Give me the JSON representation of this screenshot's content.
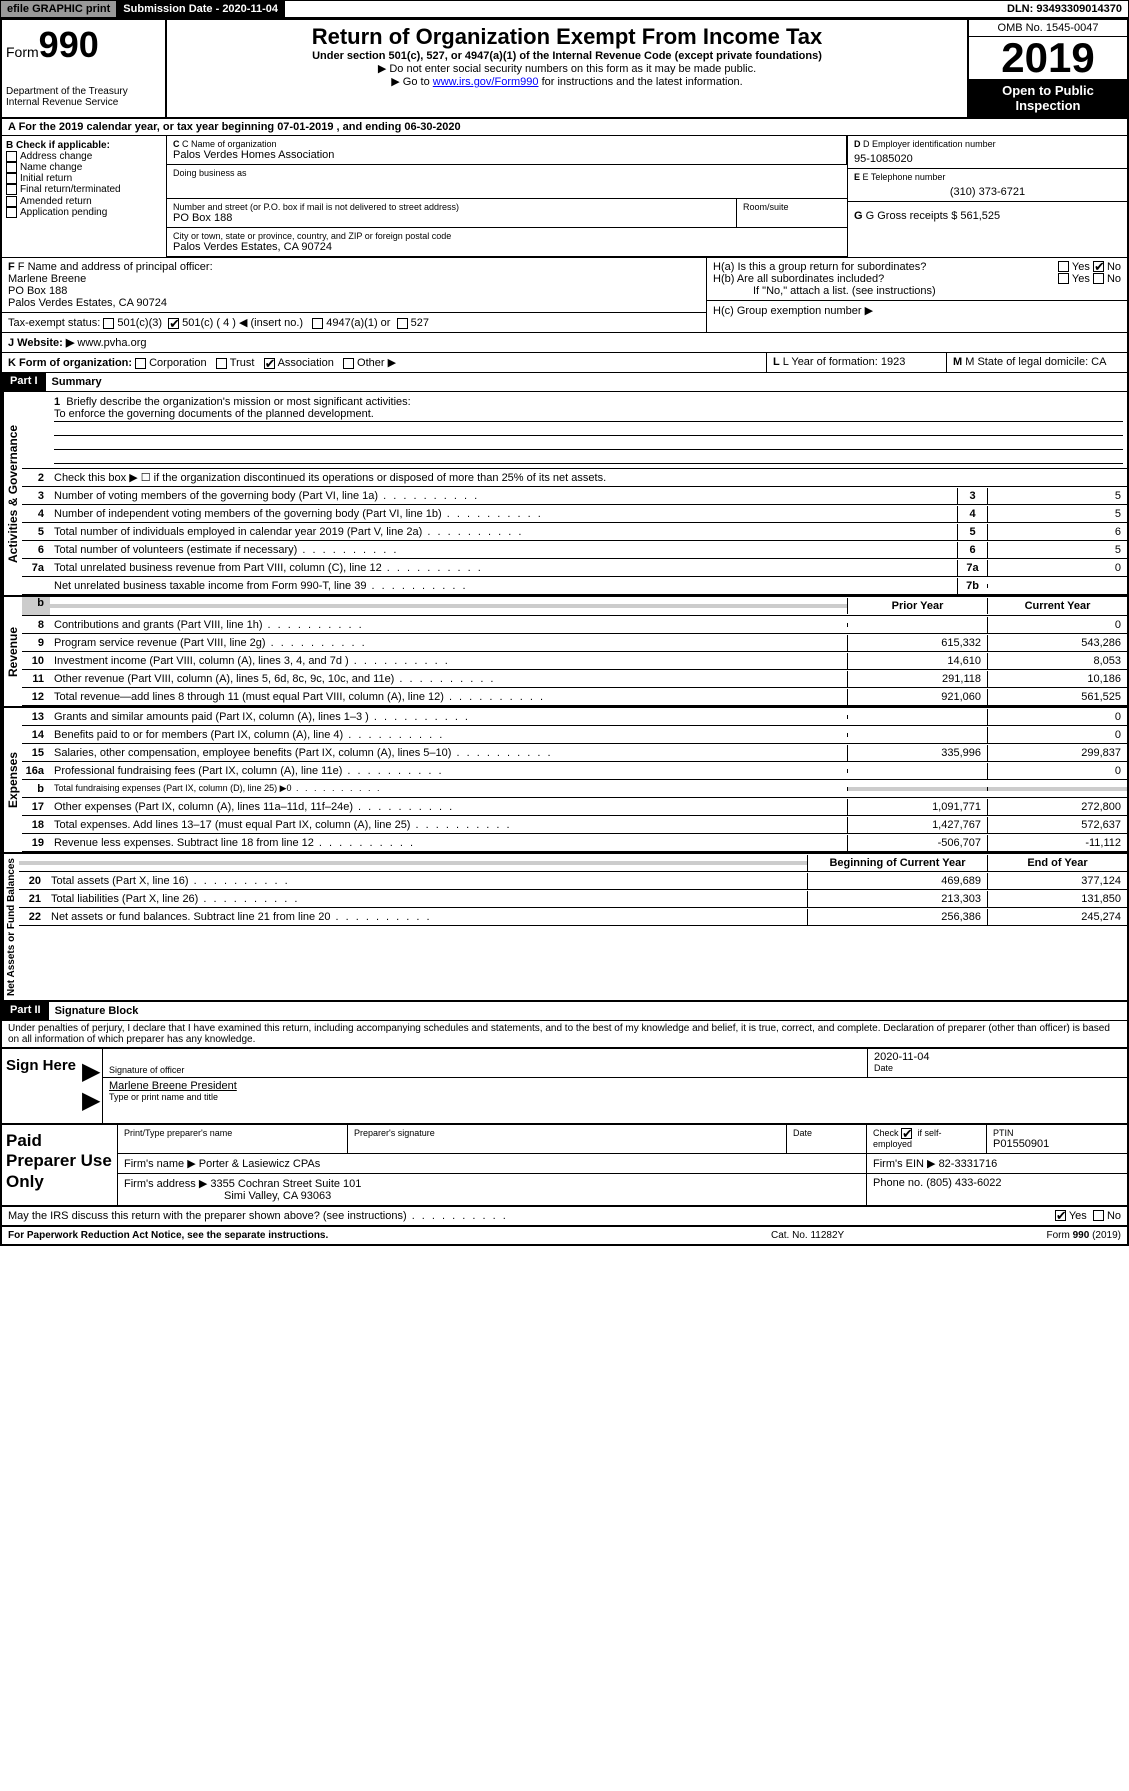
{
  "topbar": {
    "efile": "efile GRAPHIC print",
    "submission_label": "Submission Date - 2020-11-04",
    "dln": "DLN: 93493309014370"
  },
  "header": {
    "form_prefix": "Form",
    "form_num": "990",
    "dept1": "Department of the Treasury",
    "dept2": "Internal Revenue Service",
    "title": "Return of Organization Exempt From Income Tax",
    "subtitle": "Under section 501(c), 527, or 4947(a)(1) of the Internal Revenue Code (except private foundations)",
    "note1": "▶ Do not enter social security numbers on this form as it may be made public.",
    "note2_pre": "▶ Go to ",
    "note2_link": "www.irs.gov/Form990",
    "note2_post": " for instructions and the latest information.",
    "omb": "OMB No. 1545-0047",
    "year": "2019",
    "open": "Open to Public Inspection"
  },
  "row_a": "A For the 2019 calendar year, or tax year beginning 07-01-2019    , and ending 06-30-2020",
  "col_b": {
    "title": "B Check if applicable:",
    "items": [
      "Address change",
      "Name change",
      "Initial return",
      "Final return/terminated",
      "Amended return",
      "Application pending"
    ]
  },
  "c": {
    "label": "C Name of organization",
    "name": "Palos Verdes Homes Association",
    "dba_label": "Doing business as",
    "addr_label": "Number and street (or P.O. box if mail is not delivered to street address)",
    "room_label": "Room/suite",
    "addr": "PO Box 188",
    "city_label": "City or town, state or province, country, and ZIP or foreign postal code",
    "city": "Palos Verdes Estates, CA  90724"
  },
  "d": {
    "label": "D Employer identification number",
    "value": "95-1085020"
  },
  "e": {
    "label": "E Telephone number",
    "value": "(310) 373-6721"
  },
  "g": {
    "label": "G Gross receipts $ 561,525"
  },
  "f": {
    "label": "F  Name and address of principal officer:",
    "name": "Marlene Breene",
    "addr1": "PO Box 188",
    "addr2": "Palos Verdes Estates, CA  90724"
  },
  "h": {
    "a": "H(a)  Is this a group return for subordinates?",
    "b": "H(b)  Are all subordinates included?",
    "b_note": "If \"No,\" attach a list. (see instructions)",
    "c": "H(c)  Group exemption number ▶",
    "yes": "Yes",
    "no": "No"
  },
  "i": {
    "label": "Tax-exempt status:",
    "opt1": "501(c)(3)",
    "opt2": "501(c) ( 4 ) ◀ (insert no.)",
    "opt3": "4947(a)(1) or",
    "opt4": "527"
  },
  "j": {
    "label": "J   Website: ▶",
    "value": "  www.pvha.org"
  },
  "k": {
    "label": "K Form of organization:",
    "opts": [
      "Corporation",
      "Trust",
      "Association",
      "Other ▶"
    ]
  },
  "l": {
    "label": "L Year of formation: 1923"
  },
  "m": {
    "label": "M State of legal domicile: CA"
  },
  "part1": {
    "header": "Part I",
    "title": "Summary",
    "side1": "Activities & Governance",
    "side2": "Revenue",
    "side3": "Expenses",
    "side4": "Net Assets or Fund Balances",
    "l1": "Briefly describe the organization's mission or most significant activities:",
    "l1_text": "To enforce the governing documents of the planned development.",
    "l2": "Check this box ▶ ☐  if the organization discontinued its operations or disposed of more than 25% of its net assets.",
    "lines_gov": [
      {
        "n": "3",
        "t": "Number of voting members of the governing body (Part VI, line 1a)",
        "b": "3",
        "v": "5"
      },
      {
        "n": "4",
        "t": "Number of independent voting members of the governing body (Part VI, line 1b)",
        "b": "4",
        "v": "5"
      },
      {
        "n": "5",
        "t": "Total number of individuals employed in calendar year 2019 (Part V, line 2a)",
        "b": "5",
        "v": "6"
      },
      {
        "n": "6",
        "t": "Total number of volunteers (estimate if necessary)",
        "b": "6",
        "v": "5"
      },
      {
        "n": "7a",
        "t": "Total unrelated business revenue from Part VIII, column (C), line 12",
        "b": "7a",
        "v": "0"
      },
      {
        "n": "",
        "t": "Net unrelated business taxable income from Form 990-T, line 39",
        "b": "7b",
        "v": ""
      }
    ],
    "col_prior": "Prior Year",
    "col_current": "Current Year",
    "lines_rev": [
      {
        "n": "8",
        "t": "Contributions and grants (Part VIII, line 1h)",
        "p": "",
        "c": "0"
      },
      {
        "n": "9",
        "t": "Program service revenue (Part VIII, line 2g)",
        "p": "615,332",
        "c": "543,286"
      },
      {
        "n": "10",
        "t": "Investment income (Part VIII, column (A), lines 3, 4, and 7d )",
        "p": "14,610",
        "c": "8,053"
      },
      {
        "n": "11",
        "t": "Other revenue (Part VIII, column (A), lines 5, 6d, 8c, 9c, 10c, and 11e)",
        "p": "291,118",
        "c": "10,186"
      },
      {
        "n": "12",
        "t": "Total revenue—add lines 8 through 11 (must equal Part VIII, column (A), line 12)",
        "p": "921,060",
        "c": "561,525"
      }
    ],
    "lines_exp": [
      {
        "n": "13",
        "t": "Grants and similar amounts paid (Part IX, column (A), lines 1–3 )",
        "p": "",
        "c": "0"
      },
      {
        "n": "14",
        "t": "Benefits paid to or for members (Part IX, column (A), line 4)",
        "p": "",
        "c": "0"
      },
      {
        "n": "15",
        "t": "Salaries, other compensation, employee benefits (Part IX, column (A), lines 5–10)",
        "p": "335,996",
        "c": "299,837"
      },
      {
        "n": "16a",
        "t": "Professional fundraising fees (Part IX, column (A), line 11e)",
        "p": "",
        "c": "0"
      },
      {
        "n": "b",
        "t": "Total fundraising expenses (Part IX, column (D), line 25) ▶0",
        "p": "GREY",
        "c": "GREY"
      },
      {
        "n": "17",
        "t": "Other expenses (Part IX, column (A), lines 11a–11d, 11f–24e)",
        "p": "1,091,771",
        "c": "272,800"
      },
      {
        "n": "18",
        "t": "Total expenses. Add lines 13–17 (must equal Part IX, column (A), line 25)",
        "p": "1,427,767",
        "c": "572,637"
      },
      {
        "n": "19",
        "t": "Revenue less expenses. Subtract line 18 from line 12",
        "p": "-506,707",
        "c": "-11,112"
      }
    ],
    "col_begin": "Beginning of Current Year",
    "col_end": "End of Year",
    "lines_net": [
      {
        "n": "20",
        "t": "Total assets (Part X, line 16)",
        "p": "469,689",
        "c": "377,124"
      },
      {
        "n": "21",
        "t": "Total liabilities (Part X, line 26)",
        "p": "213,303",
        "c": "131,850"
      },
      {
        "n": "22",
        "t": "Net assets or fund balances. Subtract line 21 from line 20",
        "p": "256,386",
        "c": "245,274"
      }
    ]
  },
  "part2": {
    "header": "Part II",
    "title": "Signature Block",
    "perjury": "Under penalties of perjury, I declare that I have examined this return, including accompanying schedules and statements, and to the best of my knowledge and belief, it is true, correct, and complete. Declaration of preparer (other than officer) is based on all information of which preparer has any knowledge."
  },
  "sign": {
    "label": "Sign Here",
    "sig_of_officer": "Signature of officer",
    "date": "2020-11-04",
    "date_label": "Date",
    "name": "Marlene Breene  President",
    "name_label": "Type or print name and title"
  },
  "paid": {
    "label": "Paid Preparer Use Only",
    "h1": "Print/Type preparer's name",
    "h2": "Preparer's signature",
    "h3": "Date",
    "h4_pre": "Check",
    "h4_post": "if self-employed",
    "h5": "PTIN",
    "ptin": "P01550901",
    "firm_name_label": "Firm's name    ▶",
    "firm_name": "Porter & Lasiewicz CPAs",
    "firm_ein_label": "Firm's EIN ▶",
    "firm_ein": "82-3331716",
    "firm_addr_label": "Firm's address ▶",
    "firm_addr1": "3355 Cochran Street Suite 101",
    "firm_addr2": "Simi Valley, CA  93063",
    "phone_label": "Phone no.",
    "phone": "(805) 433-6022"
  },
  "discuss": "May the IRS discuss this return with the preparer shown above? (see instructions)",
  "footer": {
    "left": "For Paperwork Reduction Act Notice, see the separate instructions.",
    "mid": "Cat. No. 11282Y",
    "right": "Form 990 (2019)"
  }
}
